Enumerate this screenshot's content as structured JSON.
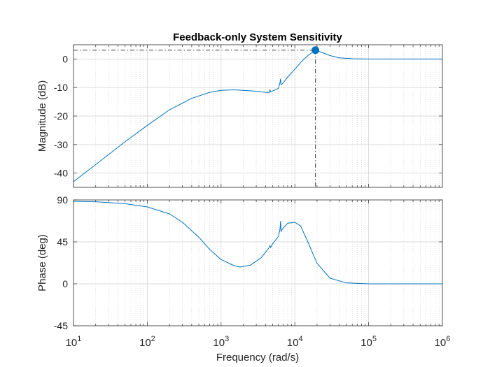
{
  "chart_data": {
    "type": "line",
    "title": "Feedback-only System Sensitivity",
    "xlabel": "Frequency  (rad/s)",
    "xscale": "log",
    "xlim": [
      10,
      1000000
    ],
    "x_tick_values": [
      10,
      100,
      1000,
      10000,
      100000,
      1000000
    ],
    "x_tick_labels": [
      {
        "base": "10",
        "exp": "1"
      },
      {
        "base": "10",
        "exp": "2"
      },
      {
        "base": "10",
        "exp": "3"
      },
      {
        "base": "10",
        "exp": "4"
      },
      {
        "base": "10",
        "exp": "5"
      },
      {
        "base": "10",
        "exp": "6"
      }
    ],
    "grid": true,
    "line_color": "#0072bd",
    "grid_color": "#cfcfcf",
    "axis_color": "#262626",
    "peak_marker": {
      "x": 19000,
      "y": 3.1
    },
    "panels": [
      {
        "name": "magnitude",
        "ylabel": "Magnitude (dB)",
        "ylim": [
          -45,
          5
        ],
        "y_ticks": [
          -40,
          -30,
          -20,
          -10,
          0
        ],
        "y_tick_labels": [
          "-40",
          "-30",
          "-20",
          "-10",
          "0"
        ],
        "series": [
          {
            "x": [
              10,
              20,
              50,
              100,
              200,
              400,
              700,
              1000,
              1500,
              2000,
              3000,
              4000,
              4500,
              4600,
              4700,
              5000,
              5500,
              6000,
              6300,
              6400,
              6500,
              6700,
              7000,
              8000,
              10000,
              12000,
              15000,
              19000,
              25000,
              30000,
              40000,
              60000,
              100000,
              1000000
            ],
            "y": [
              -43,
              -37,
              -29,
              -23.3,
              -17.8,
              -13.8,
              -11.7,
              -11,
              -10.8,
              -11,
              -11.3,
              -11.7,
              -11.8,
              -10.8,
              -11.5,
              -11.2,
              -10.8,
              -10.2,
              -8.2,
              -7,
              -9,
              -8.8,
              -8.3,
              -6.3,
              -3.6,
              -1.2,
              1.2,
              3.1,
              2,
              1.2,
              0.4,
              0.1,
              0,
              0
            ]
          }
        ]
      },
      {
        "name": "phase",
        "ylabel": "Phase (deg)",
        "ylim": [
          -45,
          90
        ],
        "y_ticks": [
          -45,
          0,
          45,
          90
        ],
        "y_tick_labels": [
          "-45",
          "0",
          "45",
          "90"
        ],
        "series": [
          {
            "x": [
              10,
              20,
              50,
              100,
              200,
              300,
              500,
              700,
              1000,
              1500,
              1800,
              2500,
              3500,
              4500,
              4600,
              4700,
              5000,
              5500,
              6000,
              6300,
              6400,
              6500,
              6700,
              7000,
              8000,
              10000,
              12000,
              15000,
              20000,
              30000,
              50000,
              100000,
              1000000
            ],
            "y": [
              88.5,
              88,
              86,
              82.5,
              75,
              66,
              50,
              37,
              26,
              19.5,
              18,
              20,
              28,
              39,
              41,
              39,
              43,
              47,
              51,
              59,
              67,
              56,
              58,
              60,
              65,
              66,
              62,
              45,
              22,
              6,
              1,
              0,
              0
            ]
          }
        ]
      }
    ]
  }
}
